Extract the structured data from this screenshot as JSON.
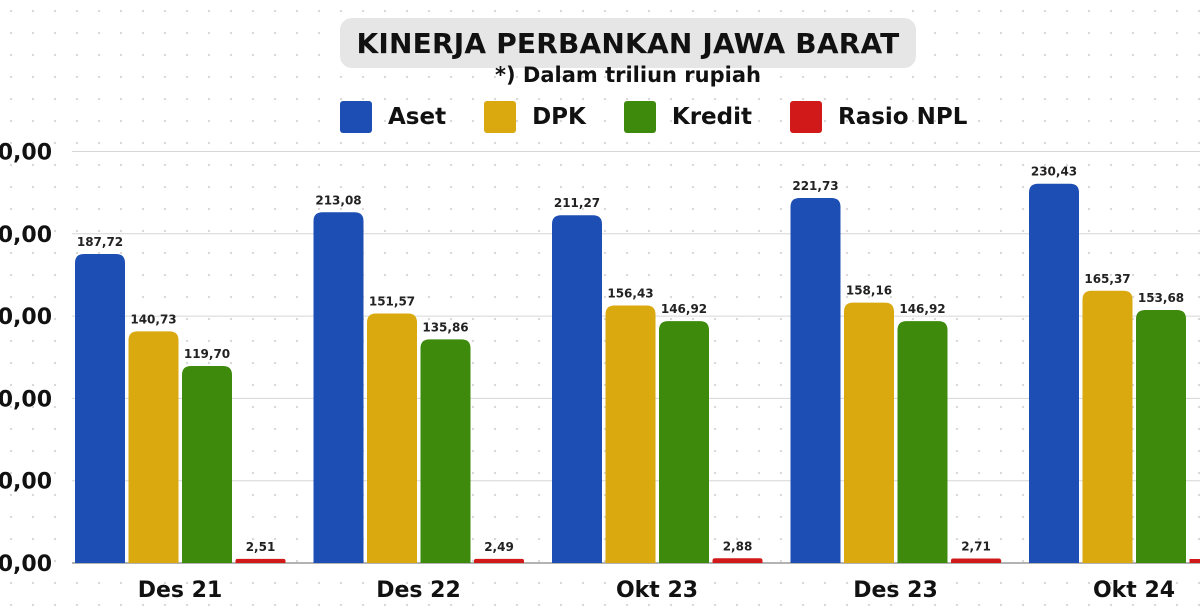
{
  "chart_data": {
    "type": "bar",
    "title": "KINERJA PERBANKAN JAWA BARAT",
    "subtitle": "*) Dalam triliun rupiah",
    "categories": [
      "Des 21",
      "Des 22",
      "Okt 23",
      "Des 23",
      "Okt 24"
    ],
    "series": [
      {
        "name": "Aset",
        "color": "#1c4eb3",
        "values": [
          187.72,
          213.08,
          211.27,
          221.73,
          230.43
        ],
        "labels": [
          "187,72",
          "213,08",
          "211,27",
          "221,73",
          "230,43"
        ]
      },
      {
        "name": "DPK",
        "color": "#d9a90f",
        "values": [
          140.73,
          151.57,
          156.43,
          158.16,
          165.37
        ],
        "labels": [
          "140,73",
          "151,57",
          "156,43",
          "158,16",
          "165,37"
        ]
      },
      {
        "name": "Kredit",
        "color": "#3d8a0c",
        "values": [
          119.7,
          135.86,
          146.92,
          146.92,
          153.68
        ],
        "labels": [
          "119,70",
          "135,86",
          "146,92",
          "146,92",
          "153,68"
        ]
      },
      {
        "name": "Rasio NPL",
        "color": "#d21919",
        "values": [
          2.51,
          2.49,
          2.88,
          2.71,
          null
        ],
        "labels": [
          "2,51",
          "2,49",
          "2,88",
          "2,71",
          ""
        ]
      }
    ],
    "y_tick_labels": [
      "0,00",
      "0,00",
      "0,00",
      "0,00",
      "0,00",
      "0,00"
    ],
    "ylim": [
      0,
      250
    ],
    "grid": true,
    "legend_position": "top"
  }
}
